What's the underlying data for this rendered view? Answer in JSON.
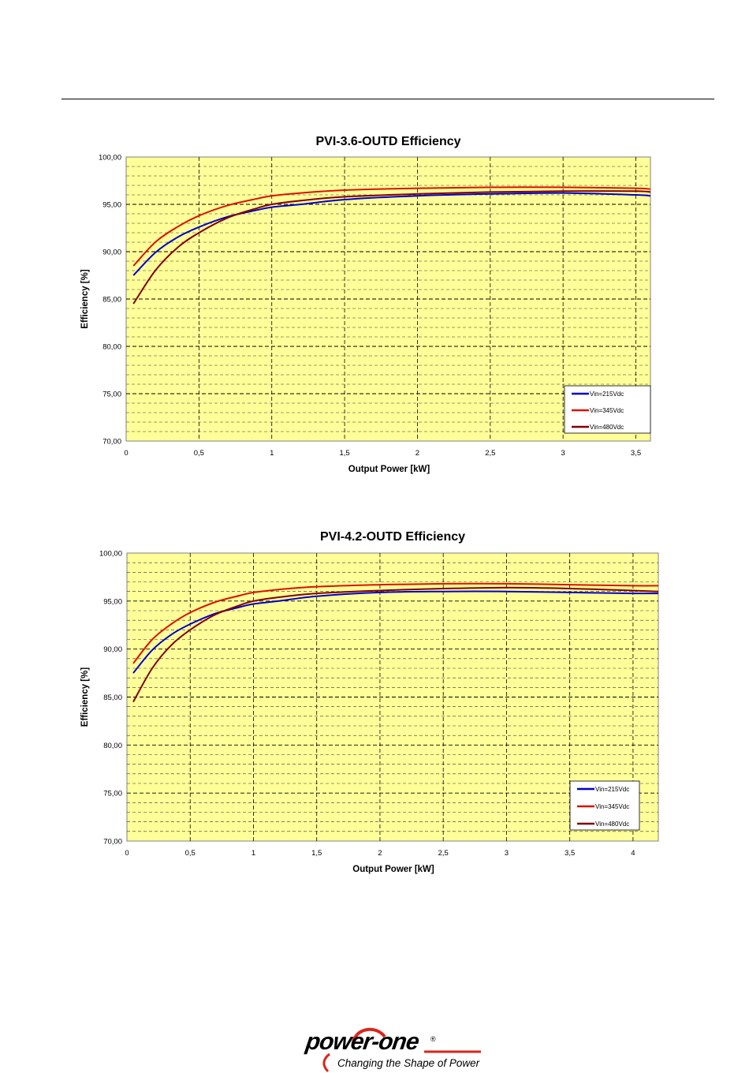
{
  "colors": {
    "plot_bg": "#ffff99",
    "series_215": "#0000cc",
    "series_345": "#dd1100",
    "series_480": "#800000",
    "logo_accent": "#d9261c"
  },
  "chart_data": [
    {
      "type": "line",
      "title": "PVI-3.6-OUTD Efficiency",
      "xlabel": "Output Power [kW]",
      "ylabel": "Efficiency [%]",
      "xlim": [
        0,
        3.6
      ],
      "ylim": [
        70,
        100
      ],
      "xticks": [
        0,
        0.5,
        1,
        1.5,
        2,
        2.5,
        3,
        3.5
      ],
      "xtick_labels": [
        "0",
        "0,5",
        "1",
        "1,5",
        "2",
        "2,5",
        "3",
        "3,5"
      ],
      "yticks": [
        70,
        75,
        80,
        85,
        90,
        95,
        100
      ],
      "ytick_labels": [
        "70,00",
        "75,00",
        "80,00",
        "85,00",
        "90,00",
        "95,00",
        "100,00"
      ],
      "grid": true,
      "legend_position": "bottom-right",
      "series": [
        {
          "name": "Vin=215Vdc",
          "color_key": "series_215",
          "x": [
            0.05,
            0.2,
            0.35,
            0.5,
            0.7,
            0.9,
            1.0,
            1.2,
            1.5,
            2.0,
            2.5,
            3.0,
            3.5,
            3.6
          ],
          "y": [
            87.5,
            89.9,
            91.5,
            92.6,
            93.7,
            94.4,
            94.7,
            95.0,
            95.5,
            95.9,
            96.1,
            96.2,
            96.0,
            95.9
          ]
        },
        {
          "name": "Vin=345Vdc",
          "color_key": "series_345",
          "x": [
            0.05,
            0.2,
            0.35,
            0.5,
            0.7,
            0.9,
            1.0,
            1.2,
            1.5,
            2.0,
            2.5,
            3.0,
            3.5,
            3.6
          ],
          "y": [
            88.5,
            91.0,
            92.6,
            93.8,
            94.9,
            95.6,
            95.9,
            96.2,
            96.5,
            96.7,
            96.8,
            96.8,
            96.7,
            96.6
          ]
        },
        {
          "name": "Vin=480Vdc",
          "color_key": "series_480",
          "x": [
            0.05,
            0.2,
            0.35,
            0.5,
            0.7,
            0.9,
            1.0,
            1.2,
            1.5,
            2.0,
            2.5,
            3.0,
            3.5,
            3.6
          ],
          "y": [
            84.5,
            88.0,
            90.4,
            92.0,
            93.6,
            94.6,
            95.0,
            95.4,
            95.8,
            96.1,
            96.3,
            96.4,
            96.4,
            96.3
          ]
        }
      ]
    },
    {
      "type": "line",
      "title": "PVI-4.2-OUTD Efficiency",
      "xlabel": "Output Power [kW]",
      "ylabel": "Efficiency [%]",
      "xlim": [
        0,
        4.2
      ],
      "ylim": [
        70,
        100
      ],
      "xticks": [
        0,
        0.5,
        1,
        1.5,
        2,
        2.5,
        3,
        3.5,
        4
      ],
      "xtick_labels": [
        "0",
        "0,5",
        "1",
        "1,5",
        "2",
        "2,5",
        "3",
        "3,5",
        "4"
      ],
      "yticks": [
        70,
        75,
        80,
        85,
        90,
        95,
        100
      ],
      "ytick_labels": [
        "70,00",
        "75,00",
        "80,00",
        "85,00",
        "90,00",
        "95,00",
        "100,00"
      ],
      "grid": true,
      "legend_position": "bottom-right",
      "series": [
        {
          "name": "Vin=215Vdc",
          "color_key": "series_215",
          "x": [
            0.05,
            0.2,
            0.35,
            0.5,
            0.7,
            0.9,
            1.0,
            1.2,
            1.5,
            2.0,
            2.5,
            3.0,
            3.5,
            4.0,
            4.2
          ],
          "y": [
            87.5,
            89.9,
            91.5,
            92.6,
            93.7,
            94.4,
            94.7,
            95.0,
            95.5,
            95.9,
            96.0,
            96.0,
            95.9,
            95.8,
            95.8
          ]
        },
        {
          "name": "Vin=345Vdc",
          "color_key": "series_345",
          "x": [
            0.05,
            0.2,
            0.35,
            0.5,
            0.7,
            0.9,
            1.0,
            1.2,
            1.5,
            2.0,
            2.5,
            3.0,
            3.5,
            4.0,
            4.2
          ],
          "y": [
            88.5,
            91.0,
            92.6,
            93.8,
            94.9,
            95.6,
            95.9,
            96.2,
            96.5,
            96.7,
            96.8,
            96.8,
            96.7,
            96.6,
            96.6
          ]
        },
        {
          "name": "Vin=480Vdc",
          "color_key": "series_480",
          "x": [
            0.05,
            0.2,
            0.35,
            0.5,
            0.7,
            0.9,
            1.0,
            1.2,
            1.5,
            2.0,
            2.5,
            3.0,
            3.5,
            4.0,
            4.2
          ],
          "y": [
            84.5,
            88.0,
            90.4,
            92.0,
            93.6,
            94.6,
            95.0,
            95.4,
            95.8,
            96.1,
            96.3,
            96.4,
            96.3,
            96.1,
            96.0
          ]
        }
      ]
    }
  ],
  "logo": {
    "wordmark": "power-one",
    "registered": "®",
    "tagline": "Changing the Shape of Power"
  }
}
